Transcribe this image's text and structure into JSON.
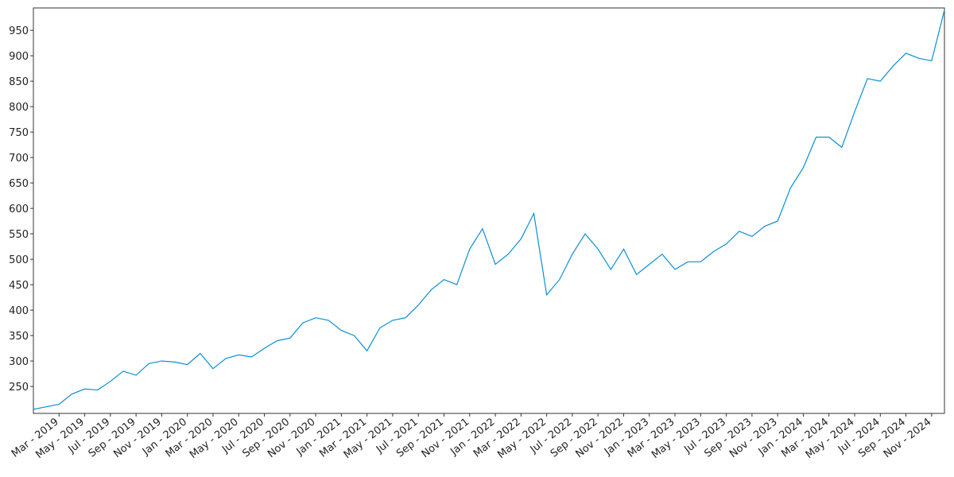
{
  "chart_data": {
    "type": "line",
    "x": [
      "2019-01",
      "2019-02",
      "2019-03",
      "2019-04",
      "2019-05",
      "2019-06",
      "2019-07",
      "2019-08",
      "2019-09",
      "2019-10",
      "2019-11",
      "2019-12",
      "2020-01",
      "2020-02",
      "2020-03",
      "2020-04",
      "2020-05",
      "2020-06",
      "2020-07",
      "2020-08",
      "2020-09",
      "2020-10",
      "2020-11",
      "2020-12",
      "2021-01",
      "2021-02",
      "2021-03",
      "2021-04",
      "2021-05",
      "2021-06",
      "2021-07",
      "2021-08",
      "2021-09",
      "2021-10",
      "2021-11",
      "2021-12",
      "2022-01",
      "2022-02",
      "2022-03",
      "2022-04",
      "2022-05",
      "2022-06",
      "2022-07",
      "2022-08",
      "2022-09",
      "2022-10",
      "2022-11",
      "2022-12",
      "2023-01",
      "2023-02",
      "2023-03",
      "2023-04",
      "2023-05",
      "2023-06",
      "2023-07",
      "2023-08",
      "2023-09",
      "2023-10",
      "2023-11",
      "2023-12",
      "2024-01",
      "2024-02",
      "2024-03",
      "2024-04",
      "2024-05",
      "2024-06",
      "2024-07",
      "2024-08",
      "2024-09",
      "2024-10",
      "2024-11",
      "2024-12"
    ],
    "values": [
      205,
      210,
      215,
      235,
      245,
      243,
      260,
      280,
      272,
      295,
      300,
      298,
      293,
      315,
      285,
      305,
      312,
      308,
      325,
      340,
      345,
      375,
      385,
      380,
      360,
      350,
      320,
      365,
      380,
      385,
      410,
      440,
      460,
      450,
      520,
      560,
      490,
      510,
      540,
      590,
      430,
      460,
      510,
      550,
      520,
      480,
      520,
      470,
      490,
      510,
      480,
      495,
      495,
      515,
      530,
      555,
      545,
      565,
      575,
      640,
      680,
      740,
      740,
      720,
      790,
      855,
      850,
      880,
      905,
      895,
      890,
      990
    ],
    "color": "#0a8fd6",
    "xlim": [
      "2019-01",
      "2024-12"
    ],
    "xticks": [
      {
        "value": "2019-03",
        "label": "Mar - 2019"
      },
      {
        "value": "2019-05",
        "label": "May - 2019"
      },
      {
        "value": "2019-07",
        "label": "Jul - 2019"
      },
      {
        "value": "2019-09",
        "label": "Sep - 2019"
      },
      {
        "value": "2019-11",
        "label": "Nov - 2019"
      },
      {
        "value": "2020-01",
        "label": "Jan - 2020"
      },
      {
        "value": "2020-03",
        "label": "Mar - 2020"
      },
      {
        "value": "2020-05",
        "label": "May - 2020"
      },
      {
        "value": "2020-07",
        "label": "Jul - 2020"
      },
      {
        "value": "2020-09",
        "label": "Sep - 2020"
      },
      {
        "value": "2020-11",
        "label": "Nov - 2020"
      },
      {
        "value": "2021-01",
        "label": "Jan - 2021"
      },
      {
        "value": "2021-03",
        "label": "Mar - 2021"
      },
      {
        "value": "2021-05",
        "label": "May - 2021"
      },
      {
        "value": "2021-07",
        "label": "Jul - 2021"
      },
      {
        "value": "2021-09",
        "label": "Sep - 2021"
      },
      {
        "value": "2021-11",
        "label": "Nov - 2021"
      },
      {
        "value": "2022-01",
        "label": "Jan - 2022"
      },
      {
        "value": "2022-03",
        "label": "Mar - 2022"
      },
      {
        "value": "2022-05",
        "label": "May - 2022"
      },
      {
        "value": "2022-07",
        "label": "Jul - 2022"
      },
      {
        "value": "2022-09",
        "label": "Sep - 2022"
      },
      {
        "value": "2022-11",
        "label": "Nov - 2022"
      },
      {
        "value": "2023-01",
        "label": "Jan - 2023"
      },
      {
        "value": "2023-03",
        "label": "Mar - 2023"
      },
      {
        "value": "2023-05",
        "label": "May - 2023"
      },
      {
        "value": "2023-07",
        "label": "Jul - 2023"
      },
      {
        "value": "2023-09",
        "label": "Sep - 2023"
      },
      {
        "value": "2023-11",
        "label": "Nov - 2023"
      },
      {
        "value": "2024-01",
        "label": "Jan - 2024"
      },
      {
        "value": "2024-03",
        "label": "Mar - 2024"
      },
      {
        "value": "2024-05",
        "label": "May - 2024"
      },
      {
        "value": "2024-07",
        "label": "Jul - 2024"
      },
      {
        "value": "2024-09",
        "label": "Sep - 2024"
      },
      {
        "value": "2024-11",
        "label": "Nov - 2024"
      }
    ],
    "ylim": [
      197,
      994
    ],
    "yticks": [
      250,
      300,
      350,
      400,
      450,
      500,
      550,
      600,
      650,
      700,
      750,
      800,
      850,
      900,
      950
    ],
    "grid": false
  }
}
